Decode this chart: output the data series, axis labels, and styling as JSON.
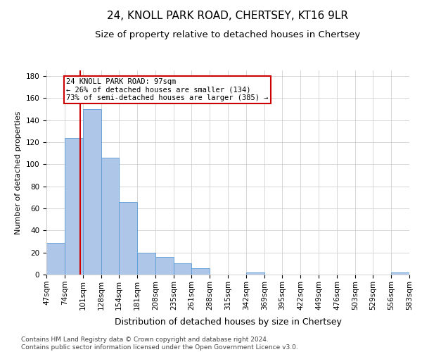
{
  "title": "24, KNOLL PARK ROAD, CHERTSEY, KT16 9LR",
  "subtitle": "Size of property relative to detached houses in Chertsey",
  "xlabel": "Distribution of detached houses by size in Chertsey",
  "ylabel": "Number of detached properties",
  "property_size": 97,
  "annotation_line1": "24 KNOLL PARK ROAD: 97sqm",
  "annotation_line2": "← 26% of detached houses are smaller (134)",
  "annotation_line3": "73% of semi-detached houses are larger (385) →",
  "footer_line1": "Contains HM Land Registry data © Crown copyright and database right 2024.",
  "footer_line2": "Contains public sector information licensed under the Open Government Licence v3.0.",
  "bins": [
    47,
    74,
    101,
    128,
    154,
    181,
    208,
    235,
    261,
    288,
    315,
    342,
    369,
    395,
    422,
    449,
    476,
    503,
    529,
    556,
    583
  ],
  "counts": [
    29,
    124,
    150,
    106,
    66,
    20,
    16,
    10,
    6,
    0,
    0,
    2,
    0,
    0,
    0,
    0,
    0,
    0,
    0,
    2
  ],
  "bar_color": "#aec6e8",
  "bar_edge_color": "#5b9bd5",
  "vline_color": "#cc0000",
  "annotation_box_color": "#ffffff",
  "annotation_box_edge": "#cc0000",
  "grid_color": "#d0d0d0",
  "background_color": "#ffffff",
  "ylim": [
    0,
    185
  ],
  "yticks": [
    0,
    20,
    40,
    60,
    80,
    100,
    120,
    140,
    160,
    180
  ],
  "title_fontsize": 11,
  "subtitle_fontsize": 9.5,
  "xlabel_fontsize": 9,
  "ylabel_fontsize": 8,
  "tick_fontsize": 7.5,
  "annotation_fontsize": 7.5,
  "footer_fontsize": 6.5
}
